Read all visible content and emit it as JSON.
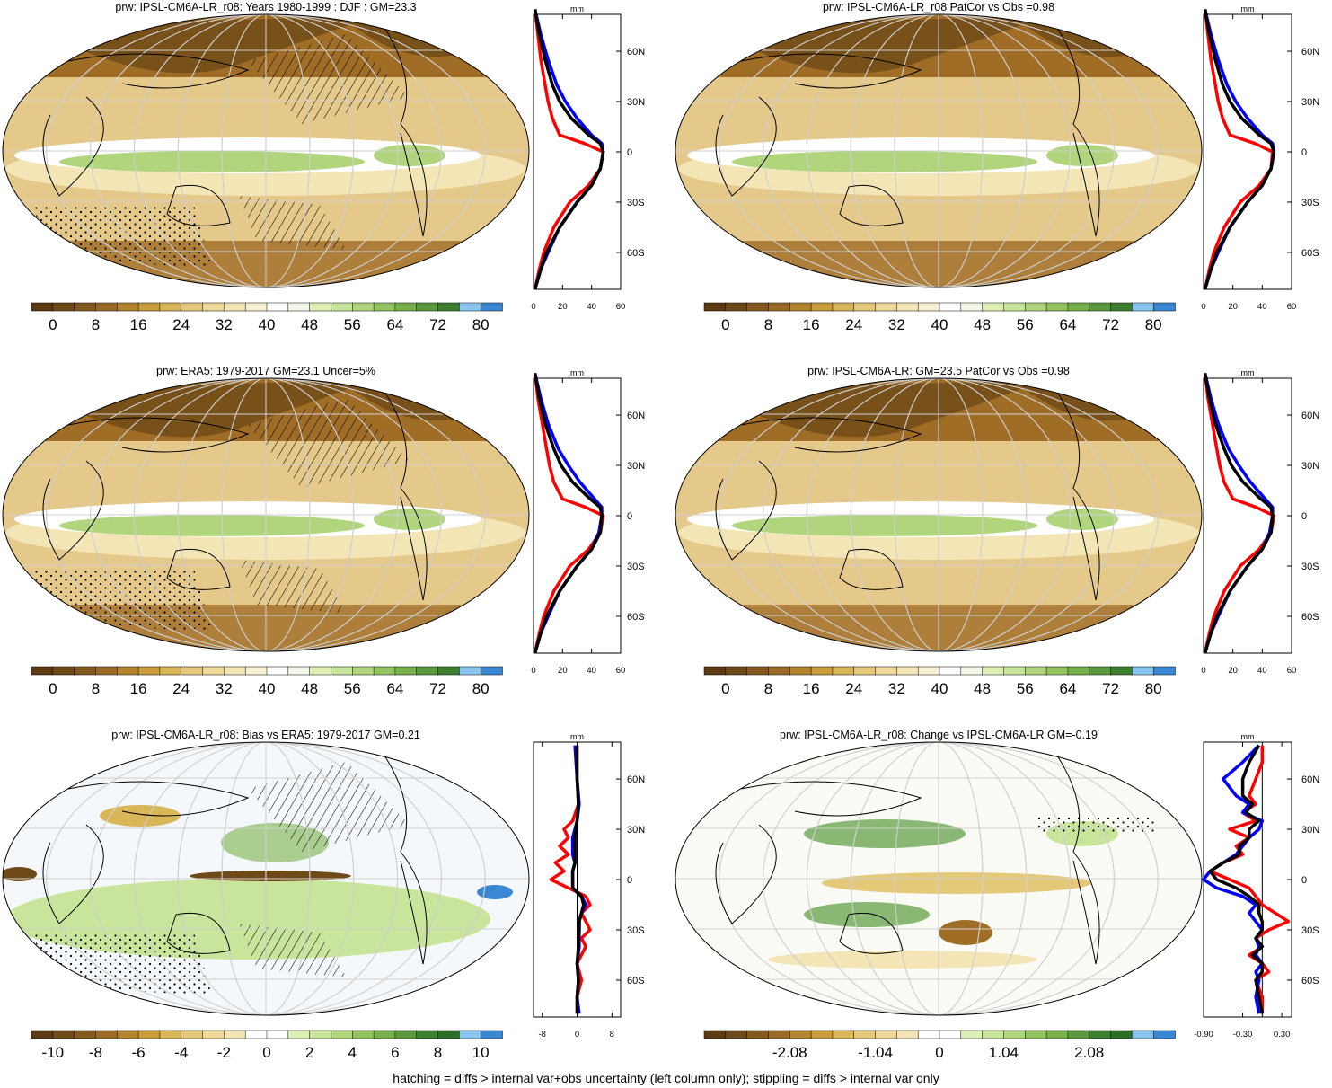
{
  "footer": "hatching = diffs > internal var+obs uncertainty (left column only); stippling = diffs > internal var only",
  "chart_data": [
    {
      "type": "map",
      "title": "prw: IPSL-CM6A-LR_r08: Years 1980-1999 : DJF : GM=23.3",
      "map_scheme": "abs",
      "overlay": "hatch",
      "colorbar": {
        "ticks": [
          "0",
          "8",
          "16",
          "24",
          "32",
          "40",
          "48",
          "56",
          "64",
          "72",
          "80"
        ],
        "ncolors": 22
      },
      "profile": {
        "units": "mm",
        "xlim": [
          0,
          60
        ],
        "xticks": [
          "0",
          "20",
          "40",
          "60"
        ],
        "lat_ticks": [
          "60N",
          "30N",
          "0",
          "30S",
          "60S"
        ],
        "baseline": null,
        "series": [
          {
            "color": "#ff0000",
            "lat": [
              85,
              70,
              55,
              40,
              30,
              20,
              10,
              5,
              0,
              -10,
              -20,
              -30,
              -45,
              -60,
              -70,
              -82
            ],
            "values": [
              1,
              3,
              5,
              8,
              10,
              13,
              18,
              35,
              48,
              46,
              38,
              25,
              14,
              7,
              4,
              1
            ]
          },
          {
            "color": "#0000ff",
            "lat": [
              85,
              70,
              55,
              40,
              30,
              20,
              10,
              5,
              0,
              -10,
              -20,
              -30,
              -45,
              -60,
              -70,
              -82
            ],
            "values": [
              1,
              5,
              10,
              16,
              22,
              30,
              40,
              47,
              48,
              46,
              40,
              30,
              18,
              10,
              5,
              1
            ]
          },
          {
            "color": "#000000",
            "lat": [
              85,
              70,
              55,
              40,
              30,
              20,
              10,
              5,
              0,
              -10,
              -20,
              -30,
              -45,
              -60,
              -70,
              -82
            ],
            "values": [
              1,
              4,
              8,
              13,
              18,
              26,
              38,
              46,
              48,
              46,
              40,
              30,
              18,
              9,
              5,
              1
            ]
          }
        ]
      }
    },
    {
      "type": "map",
      "title": "prw: IPSL-CM6A-LR_r08 PatCor vs Obs =0.98",
      "map_scheme": "abs",
      "overlay": "none",
      "colorbar": {
        "ticks": [
          "0",
          "8",
          "16",
          "24",
          "32",
          "40",
          "48",
          "56",
          "64",
          "72",
          "80"
        ],
        "ncolors": 22
      },
      "profile": {
        "units": "mm",
        "xlim": [
          0,
          60
        ],
        "xticks": [
          "0",
          "20",
          "40",
          "60"
        ],
        "lat_ticks": [
          "60N",
          "30N",
          "0",
          "30S",
          "60S"
        ],
        "baseline": null,
        "series": [
          {
            "color": "#ff0000",
            "lat": [
              85,
              70,
              55,
              40,
              30,
              20,
              10,
              5,
              0,
              -10,
              -20,
              -30,
              -45,
              -60,
              -70,
              -82
            ],
            "values": [
              1,
              3,
              5,
              8,
              10,
              13,
              18,
              35,
              47,
              46,
              38,
              25,
              14,
              7,
              4,
              1
            ]
          },
          {
            "color": "#0000ff",
            "lat": [
              85,
              70,
              55,
              40,
              30,
              20,
              10,
              5,
              0,
              -10,
              -20,
              -30,
              -45,
              -60,
              -70,
              -82
            ],
            "values": [
              1,
              5,
              10,
              16,
              22,
              30,
              40,
              47,
              48,
              46,
              40,
              30,
              18,
              10,
              5,
              1
            ]
          },
          {
            "color": "#000000",
            "lat": [
              85,
              70,
              55,
              40,
              30,
              20,
              10,
              5,
              0,
              -10,
              -20,
              -30,
              -45,
              -60,
              -70,
              -82
            ],
            "values": [
              1,
              4,
              8,
              13,
              18,
              26,
              38,
              46,
              48,
              46,
              40,
              30,
              18,
              9,
              5,
              1
            ]
          }
        ]
      }
    },
    {
      "type": "map",
      "title": "prw: ERA5: 1979-2017 GM=23.1 Uncer=5%",
      "map_scheme": "abs",
      "overlay": "hatch",
      "colorbar": {
        "ticks": [
          "0",
          "8",
          "16",
          "24",
          "32",
          "40",
          "48",
          "56",
          "64",
          "72",
          "80"
        ],
        "ncolors": 22
      },
      "profile": {
        "units": "mm",
        "xlim": [
          0,
          60
        ],
        "xticks": [
          "0",
          "20",
          "40",
          "60"
        ],
        "lat_ticks": [
          "60N",
          "30N",
          "0",
          "30S",
          "60S"
        ],
        "baseline": null,
        "series": [
          {
            "color": "#ff0000",
            "lat": [
              85,
              70,
              55,
              40,
              30,
              20,
              10,
              5,
              0,
              -10,
              -20,
              -30,
              -45,
              -60,
              -70,
              -82
            ],
            "values": [
              1,
              3,
              6,
              9,
              11,
              14,
              20,
              36,
              48,
              46,
              38,
              25,
              14,
              7,
              4,
              1
            ]
          },
          {
            "color": "#0000ff",
            "lat": [
              85,
              70,
              55,
              40,
              30,
              20,
              10,
              5,
              0,
              -10,
              -20,
              -30,
              -45,
              -60,
              -70,
              -82
            ],
            "values": [
              1,
              5,
              10,
              17,
              24,
              32,
              42,
              47,
              47,
              45,
              40,
              30,
              18,
              10,
              5,
              1
            ]
          },
          {
            "color": "#000000",
            "lat": [
              85,
              70,
              55,
              40,
              30,
              20,
              10,
              5,
              0,
              -10,
              -20,
              -30,
              -45,
              -60,
              -70,
              -82
            ],
            "values": [
              1,
              4,
              8,
              14,
              19,
              27,
              39,
              46,
              47,
              46,
              40,
              30,
              18,
              9,
              5,
              1
            ]
          }
        ]
      }
    },
    {
      "type": "map",
      "title": "prw: IPSL-CM6A-LR: GM=23.5 PatCor vs Obs =0.98",
      "map_scheme": "abs",
      "overlay": "none",
      "colorbar": {
        "ticks": [
          "0",
          "8",
          "16",
          "24",
          "32",
          "40",
          "48",
          "56",
          "64",
          "72",
          "80"
        ],
        "ncolors": 22
      },
      "profile": {
        "units": "mm",
        "xlim": [
          0,
          60
        ],
        "xticks": [
          "0",
          "20",
          "40",
          "60"
        ],
        "lat_ticks": [
          "60N",
          "30N",
          "0",
          "30S",
          "60S"
        ],
        "baseline": null,
        "series": [
          {
            "color": "#ff0000",
            "lat": [
              85,
              70,
              55,
              40,
              30,
              20,
              10,
              5,
              0,
              -10,
              -20,
              -30,
              -45,
              -60,
              -70,
              -82
            ],
            "values": [
              1,
              3,
              6,
              9,
              11,
              14,
              20,
              36,
              48,
              46,
              38,
              25,
              14,
              7,
              4,
              1
            ]
          },
          {
            "color": "#0000ff",
            "lat": [
              85,
              70,
              55,
              40,
              30,
              20,
              10,
              5,
              0,
              -10,
              -20,
              -30,
              -45,
              -60,
              -70,
              -82
            ],
            "values": [
              1,
              5,
              10,
              17,
              24,
              32,
              42,
              47,
              47,
              45,
              40,
              30,
              18,
              10,
              5,
              1
            ]
          },
          {
            "color": "#000000",
            "lat": [
              85,
              70,
              55,
              40,
              30,
              20,
              10,
              5,
              0,
              -10,
              -20,
              -30,
              -45,
              -60,
              -70,
              -82
            ],
            "values": [
              1,
              4,
              8,
              14,
              19,
              27,
              39,
              46,
              47,
              46,
              40,
              30,
              18,
              9,
              5,
              1
            ]
          }
        ]
      }
    },
    {
      "type": "map",
      "title": "prw: IPSL-CM6A-LR_r08: Bias vs ERA5: 1979-2017 GM=0.21",
      "map_scheme": "bias",
      "overlay": "hatch",
      "colorbar": {
        "ticks": [
          "-10",
          "-8",
          "-6",
          "-4",
          "-2",
          "0",
          "2",
          "4",
          "6",
          "8",
          "10"
        ],
        "ncolors": 22
      },
      "profile": {
        "units": "mm",
        "xlim": [
          -10,
          10
        ],
        "xticks": [
          "-8",
          "0",
          "8"
        ],
        "lat_ticks": [
          "60N",
          "30N",
          "0",
          "30S",
          "60S"
        ],
        "baseline": 0,
        "series": [
          {
            "color": "#ff0000",
            "lat": [
              80,
              60,
              45,
              35,
              30,
              25,
              20,
              15,
              10,
              5,
              0,
              -5,
              -10,
              -15,
              -20,
              -25,
              -30,
              -35,
              -40,
              -50,
              -60,
              -70,
              -80
            ],
            "values": [
              0,
              0,
              0.3,
              -1,
              -3,
              -2,
              -4,
              -2,
              -5,
              -3,
              -6,
              -2,
              2,
              3,
              1,
              2,
              3,
              1,
              2,
              0,
              1,
              0,
              0
            ]
          },
          {
            "color": "#0000ff",
            "lat": [
              80,
              60,
              45,
              35,
              30,
              25,
              20,
              15,
              10,
              5,
              0,
              -5,
              -10,
              -15,
              -20,
              -25,
              -30,
              -35,
              -40,
              -50,
              -60,
              -70,
              -80
            ],
            "values": [
              -0.5,
              0,
              0.5,
              0,
              -0.5,
              -1,
              -1,
              -1,
              -0.5,
              -1,
              -1,
              -1,
              1,
              2,
              1,
              0.5,
              0.5,
              0.5,
              0.5,
              0,
              0.3,
              0,
              0.5
            ]
          },
          {
            "color": "#000000",
            "lat": [
              80,
              60,
              45,
              35,
              30,
              25,
              20,
              15,
              10,
              5,
              0,
              -5,
              -10,
              -15,
              -20,
              -25,
              -30,
              -35,
              -40,
              -50,
              -60,
              -70,
              -80
            ],
            "values": [
              0,
              0,
              0.3,
              0,
              -0.3,
              -0.5,
              -0.5,
              -0.5,
              -0.5,
              -1,
              -1,
              -1,
              1,
              1.5,
              1,
              0.5,
              0.5,
              0.3,
              0.3,
              0,
              0.3,
              0,
              0
            ]
          }
        ]
      }
    },
    {
      "type": "map",
      "title": "prw: IPSL-CM6A-LR_r08: Change vs IPSL-CM6A-LR GM=-0.19",
      "map_scheme": "change",
      "overlay": "stipple",
      "colorbar": {
        "ticks": [
          "-2.08",
          "-1.04",
          "0",
          "1.04",
          "2.08"
        ],
        "ncolors": 22
      },
      "profile": {
        "units": "mm",
        "xlim": [
          -0.9,
          0.45
        ],
        "xticks": [
          "-0.90",
          "-0.30",
          "0.30"
        ],
        "lat_ticks": [
          "60N",
          "30N",
          "0",
          "30S",
          "60S"
        ],
        "baseline": 0,
        "series": [
          {
            "color": "#ff0000",
            "lat": [
              80,
              70,
              60,
              50,
              45,
              40,
              35,
              30,
              25,
              20,
              15,
              10,
              5,
              0,
              -5,
              -10,
              -15,
              -20,
              -25,
              -30,
              -35,
              -40,
              -45,
              -50,
              -55,
              -60,
              -70,
              -80
            ],
            "values": [
              0,
              0,
              -0.1,
              -0.2,
              -0.1,
              -0.3,
              -0.1,
              -0.5,
              -0.2,
              -0.4,
              -0.3,
              -0.6,
              -0.8,
              -0.5,
              -0.2,
              -0.1,
              0,
              0.2,
              0.4,
              0.1,
              -0.1,
              0,
              -0.2,
              0,
              0.1,
              -0.1,
              0,
              0
            ]
          },
          {
            "color": "#0000ff",
            "lat": [
              80,
              70,
              60,
              50,
              45,
              40,
              35,
              30,
              25,
              20,
              15,
              10,
              5,
              0,
              -5,
              -10,
              -15,
              -20,
              -25,
              -30,
              -35,
              -40,
              -45,
              -50,
              -55,
              -60,
              -70,
              -80
            ],
            "values": [
              -0.05,
              -0.3,
              -0.6,
              -0.4,
              -0.2,
              -0.3,
              0,
              -0.05,
              -0.2,
              -0.3,
              -0.4,
              -0.6,
              -0.8,
              -0.9,
              -0.7,
              -0.3,
              -0.1,
              -0.2,
              -0.1,
              0,
              -0.1,
              -0.05,
              -0.1,
              0,
              -0.1,
              -0.05,
              -0.1,
              -0.05
            ]
          },
          {
            "color": "#000000",
            "lat": [
              80,
              70,
              60,
              50,
              45,
              40,
              35,
              30,
              25,
              20,
              15,
              10,
              5,
              0,
              -5,
              -10,
              -15,
              -20,
              -25,
              -30,
              -35,
              -40,
              -45,
              -50,
              -55,
              -60,
              -70,
              -80
            ],
            "values": [
              -0.05,
              -0.2,
              -0.3,
              -0.3,
              -0.15,
              -0.25,
              -0.05,
              -0.2,
              -0.2,
              -0.35,
              -0.35,
              -0.6,
              -0.8,
              -0.7,
              -0.4,
              -0.2,
              -0.05,
              -0.05,
              0,
              0,
              -0.1,
              0,
              -0.15,
              0,
              0,
              -0.1,
              -0.05,
              0
            ]
          }
        ]
      }
    }
  ]
}
